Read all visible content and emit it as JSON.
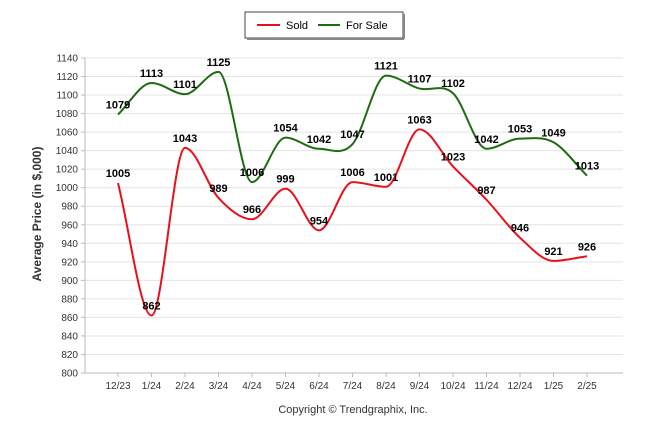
{
  "chart_data": {
    "type": "line",
    "categories": [
      "12/23",
      "1/24",
      "2/24",
      "3/24",
      "4/24",
      "5/24",
      "6/24",
      "7/24",
      "8/24",
      "9/24",
      "10/24",
      "11/24",
      "12/24",
      "1/25",
      "2/25"
    ],
    "series": [
      {
        "name": "Sold",
        "color": "#e8111b",
        "values": [
          1005,
          862,
          1043,
          989,
          966,
          999,
          954,
          1006,
          1001,
          1063,
          1023,
          987,
          946,
          921,
          926
        ]
      },
      {
        "name": "For Sale",
        "color": "#1e6b12",
        "values": [
          1079,
          1113,
          1101,
          1125,
          1006,
          1054,
          1042,
          1047,
          1121,
          1107,
          1102,
          1042,
          1053,
          1049,
          1013
        ]
      }
    ],
    "ylabel": "Average Price (in $,000)",
    "xlabel": "",
    "ylim": [
      800,
      1140
    ],
    "yticks": [
      800,
      820,
      840,
      860,
      880,
      900,
      920,
      940,
      960,
      980,
      1000,
      1020,
      1040,
      1060,
      1080,
      1100,
      1120,
      1140
    ],
    "grid": true,
    "legend_position": "top-center",
    "credit": "Copyright © Trendgraphix, Inc."
  }
}
